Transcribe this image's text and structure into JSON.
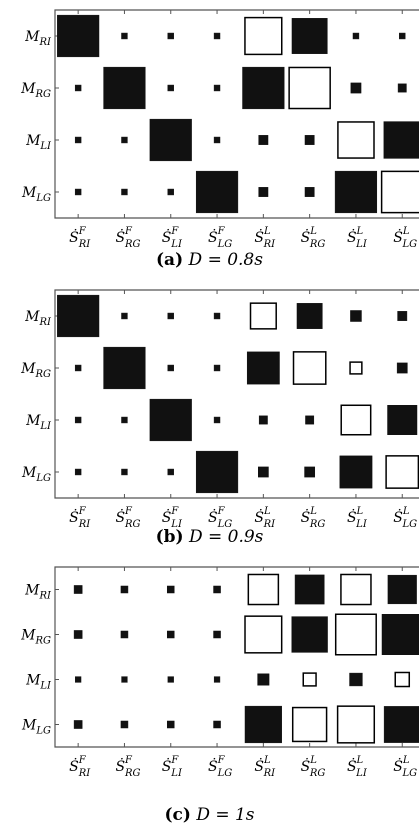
{
  "chart_data": [
    {
      "type": "hinton",
      "caption_label": "(a)",
      "caption_text": "D = 0.8s",
      "row_labels": [
        {
          "base": "M",
          "sub": "RI"
        },
        {
          "base": "M",
          "sub": "RG"
        },
        {
          "base": "M",
          "sub": "LI"
        },
        {
          "base": "M",
          "sub": "LG"
        }
      ],
      "col_labels": [
        {
          "base": "Ṡ",
          "sup": "F",
          "sub": "RI"
        },
        {
          "base": "Ṡ",
          "sup": "F",
          "sub": "RG"
        },
        {
          "base": "Ṡ",
          "sup": "F",
          "sub": "LI"
        },
        {
          "base": "Ṡ",
          "sup": "F",
          "sub": "LG"
        },
        {
          "base": "Ṡ",
          "sup": "L",
          "sub": "RI"
        },
        {
          "base": "Ṡ",
          "sup": "L",
          "sub": "RG"
        },
        {
          "base": "Ṡ",
          "sup": "L",
          "sub": "LI"
        },
        {
          "base": "Ṡ",
          "sup": "L",
          "sub": "LG"
        }
      ],
      "values": [
        [
          1.0,
          0.02,
          0.02,
          0.02,
          -0.78,
          0.72,
          0.02,
          0.02
        ],
        [
          0.02,
          1.0,
          0.02,
          0.02,
          1.0,
          -0.97,
          0.06,
          0.04
        ],
        [
          0.02,
          0.02,
          1.0,
          0.02,
          0.05,
          0.05,
          -0.75,
          0.78
        ],
        [
          0.02,
          0.02,
          0.02,
          1.0,
          0.05,
          0.05,
          1.0,
          -0.98
        ]
      ]
    },
    {
      "type": "hinton",
      "caption_label": "(b)",
      "caption_text": "D = 0.9s",
      "row_labels": [
        {
          "base": "M",
          "sub": "RI"
        },
        {
          "base": "M",
          "sub": "RG"
        },
        {
          "base": "M",
          "sub": "LI"
        },
        {
          "base": "M",
          "sub": "LG"
        }
      ],
      "col_labels": [
        {
          "base": "Ṡ",
          "sup": "F",
          "sub": "RI"
        },
        {
          "base": "Ṡ",
          "sup": "F",
          "sub": "RG"
        },
        {
          "base": "Ṡ",
          "sup": "F",
          "sub": "LI"
        },
        {
          "base": "Ṡ",
          "sup": "F",
          "sub": "LG"
        },
        {
          "base": "Ṡ",
          "sup": "L",
          "sub": "RI"
        },
        {
          "base": "Ṡ",
          "sup": "L",
          "sub": "RG"
        },
        {
          "base": "Ṡ",
          "sup": "L",
          "sub": "LI"
        },
        {
          "base": "Ṡ",
          "sup": "L",
          "sub": "LG"
        }
      ],
      "values": [
        [
          1.0,
          0.02,
          0.02,
          0.02,
          -0.38,
          0.37,
          0.07,
          0.05
        ],
        [
          0.02,
          1.0,
          0.02,
          0.02,
          0.6,
          -0.6,
          -0.08,
          0.06
        ],
        [
          0.02,
          0.02,
          1.0,
          0.02,
          0.04,
          0.04,
          -0.5,
          0.5
        ],
        [
          0.02,
          0.02,
          0.02,
          1.0,
          0.06,
          0.06,
          0.6,
          -0.6
        ]
      ]
    },
    {
      "type": "hinton",
      "caption_label": "(c)",
      "caption_text": "D = 1s",
      "row_labels": [
        {
          "base": "M",
          "sub": "RI"
        },
        {
          "base": "M",
          "sub": "RG"
        },
        {
          "base": "M",
          "sub": "LI"
        },
        {
          "base": "M",
          "sub": "LG"
        }
      ],
      "col_labels": [
        {
          "base": "Ṡ",
          "sup": "F",
          "sub": "RI"
        },
        {
          "base": "Ṡ",
          "sup": "F",
          "sub": "RG"
        },
        {
          "base": "Ṡ",
          "sup": "F",
          "sub": "LI"
        },
        {
          "base": "Ṡ",
          "sup": "F",
          "sub": "LG"
        },
        {
          "base": "Ṡ",
          "sup": "L",
          "sub": "RI"
        },
        {
          "base": "Ṡ",
          "sup": "L",
          "sub": "RG"
        },
        {
          "base": "Ṡ",
          "sup": "L",
          "sub": "LI"
        },
        {
          "base": "Ṡ",
          "sup": "L",
          "sub": "LG"
        }
      ],
      "values": [
        [
          0.04,
          0.03,
          0.03,
          0.03,
          -0.55,
          0.52,
          -0.55,
          0.5
        ],
        [
          0.04,
          0.03,
          0.03,
          0.03,
          -0.82,
          0.78,
          -1.0,
          1.0
        ],
        [
          0.02,
          0.02,
          0.02,
          0.02,
          0.08,
          -0.1,
          0.1,
          -0.12
        ],
        [
          0.04,
          0.03,
          0.03,
          0.03,
          0.82,
          -0.7,
          -0.82,
          0.8
        ]
      ]
    }
  ],
  "colors": {
    "positive": "#111111",
    "negative_fill": "#ffffff",
    "stroke": "#000000",
    "frame": "#555555"
  }
}
